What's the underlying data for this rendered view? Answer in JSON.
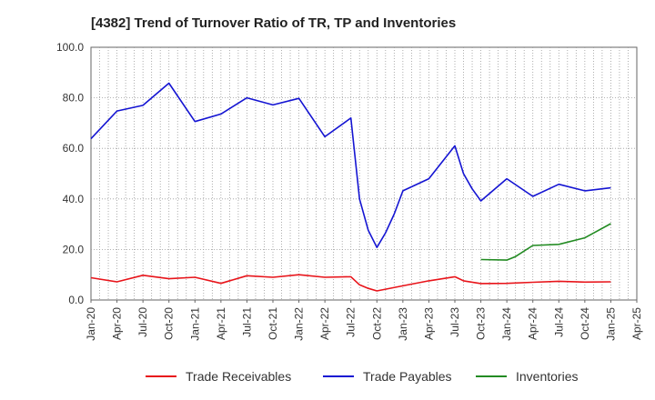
{
  "chart_data": {
    "type": "line",
    "title": "[4382]  Trend of Turnover Ratio of TR, TP and Inventories",
    "xlabel": "",
    "ylabel": "",
    "ylim": [
      0,
      100
    ],
    "yticks": [
      "0.0",
      "20.0",
      "40.0",
      "60.0",
      "80.0",
      "100.0"
    ],
    "ytick_values": [
      0,
      20,
      40,
      60,
      80,
      100
    ],
    "xticks": [
      "Jan-20",
      "Apr-20",
      "Jul-20",
      "Oct-20",
      "Jan-21",
      "Apr-21",
      "Jul-21",
      "Oct-21",
      "Jan-22",
      "Apr-22",
      "Jul-22",
      "Oct-22",
      "Jan-23",
      "Apr-23",
      "Jul-23",
      "Oct-23",
      "Jan-24",
      "Apr-24",
      "Jul-24",
      "Oct-24",
      "Jan-25",
      "Apr-25"
    ],
    "x_unit": "month index from Jan-20",
    "grid": true,
    "legend_position": "bottom",
    "series": [
      {
        "name": "Trade Receivables",
        "color": "#e8141a",
        "points": [
          [
            0,
            8.8
          ],
          [
            3,
            7.2
          ],
          [
            6,
            9.8
          ],
          [
            9,
            8.4
          ],
          [
            12,
            9.0
          ],
          [
            15,
            6.6
          ],
          [
            18,
            9.6
          ],
          [
            21,
            9.0
          ],
          [
            24,
            10.0
          ],
          [
            27,
            9.0
          ],
          [
            30,
            9.2
          ],
          [
            31,
            6.0
          ],
          [
            32,
            4.6
          ],
          [
            33,
            3.6
          ],
          [
            36,
            5.6
          ],
          [
            39,
            7.6
          ],
          [
            42,
            9.2
          ],
          [
            43,
            7.6
          ],
          [
            45,
            6.5
          ],
          [
            48,
            6.6
          ],
          [
            51,
            7.0
          ],
          [
            54,
            7.4
          ],
          [
            57,
            7.1
          ],
          [
            60,
            7.2
          ]
        ]
      },
      {
        "name": "Trade Payables",
        "color": "#1414d2",
        "points": [
          [
            0,
            63.8
          ],
          [
            3,
            74.8
          ],
          [
            6,
            77.0
          ],
          [
            9,
            85.8
          ],
          [
            12,
            70.6
          ],
          [
            15,
            73.6
          ],
          [
            18,
            80.0
          ],
          [
            21,
            77.2
          ],
          [
            24,
            79.8
          ],
          [
            27,
            64.6
          ],
          [
            30,
            72.0
          ],
          [
            31,
            40.0
          ],
          [
            32,
            27.6
          ],
          [
            33,
            20.8
          ],
          [
            34,
            26.6
          ],
          [
            35,
            34.0
          ],
          [
            36,
            43.2
          ],
          [
            39,
            48.0
          ],
          [
            42,
            61.0
          ],
          [
            43,
            50.0
          ],
          [
            44,
            44.0
          ],
          [
            45,
            39.2
          ],
          [
            48,
            48.0
          ],
          [
            51,
            41.0
          ],
          [
            54,
            45.8
          ],
          [
            57,
            43.2
          ],
          [
            60,
            44.4
          ]
        ]
      },
      {
        "name": "Inventories",
        "color": "#228b22",
        "points": [
          [
            45,
            16.0
          ],
          [
            48,
            15.8
          ],
          [
            49,
            17.2
          ],
          [
            51,
            21.6
          ],
          [
            54,
            22.0
          ],
          [
            57,
            24.6
          ],
          [
            60,
            30.2
          ]
        ]
      }
    ]
  }
}
